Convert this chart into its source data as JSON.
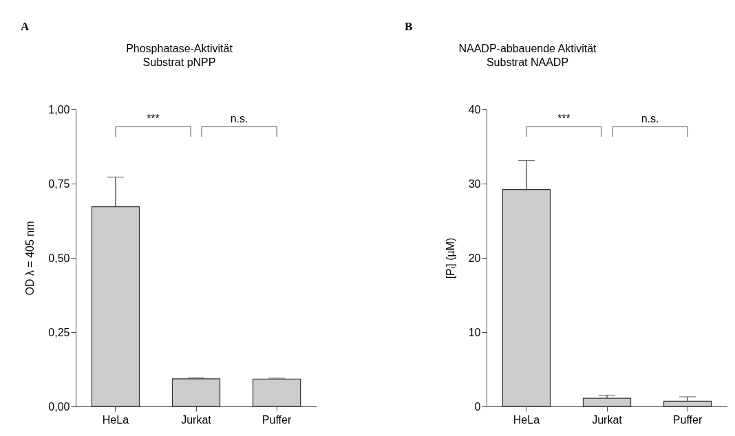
{
  "chart_data": [
    {
      "type": "bar",
      "title": "Phosphatase-Aktivität",
      "subtitle": "Substrat pNPP",
      "ylabel": "OD λ = 405 nm",
      "categories": [
        "HeLa",
        "Jurkat",
        "Puffer"
      ],
      "values": [
        0.672,
        0.093,
        0.092
      ],
      "errors": [
        [
          0.672,
          0.772
        ],
        [
          0.093,
          0.096
        ],
        [
          0.092,
          0.095
        ]
      ],
      "color": "#cccccc",
      "ylim": [
        0,
        1
      ],
      "yticks": [
        {
          "value": 0,
          "label": "0,00"
        },
        {
          "value": 0.25,
          "label": "0,25"
        },
        {
          "value": 0.5,
          "label": "0,50"
        },
        {
          "value": 0.75,
          "label": "0,75"
        },
        {
          "value": 1,
          "label": "1,00"
        }
      ],
      "grid": false,
      "annotations": [
        "A",
        "***",
        "n.s."
      ]
    },
    {
      "type": "bar",
      "title": "NAADP-abbauende Aktivität",
      "subtitle": "Substrat NAADP",
      "ylabel": "[Pᵢ]  (µM)",
      "categories": [
        "HeLa",
        "Jurkat",
        "Puffer"
      ],
      "values": [
        29.2,
        1.1,
        0.7
      ],
      "errors": [
        [
          29.2,
          33.1
        ],
        [
          1.1,
          1.5
        ],
        [
          0.7,
          1.3
        ]
      ],
      "color": "#cccccc",
      "ylim": [
        0,
        40
      ],
      "yticks": [
        0,
        10,
        20,
        30,
        40
      ],
      "grid": false,
      "annotations": [
        "B",
        "***",
        "n.s."
      ]
    }
  ]
}
